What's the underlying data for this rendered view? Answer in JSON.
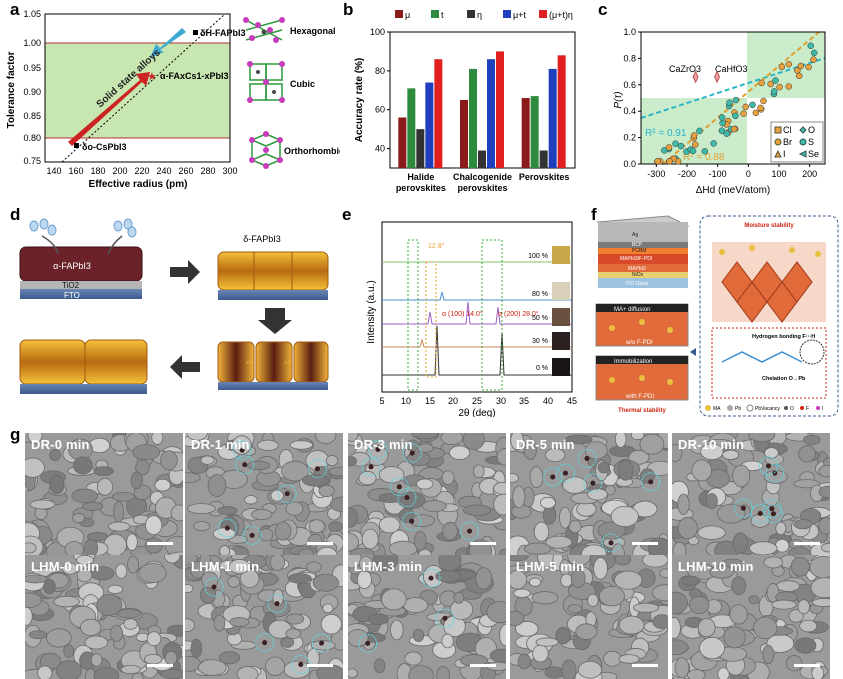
{
  "panels": {
    "a": "a",
    "b": "b",
    "c": "c",
    "d": "d",
    "e": "e",
    "f": "f",
    "g": "g"
  },
  "panel_a": {
    "xlabel": "Effective radius (pm)",
    "ylabel": "Tolerance factor",
    "xticks": [
      "140",
      "160",
      "180",
      "200",
      "220",
      "240",
      "260",
      "280",
      "300"
    ],
    "yticks": [
      "0.75",
      "0.80",
      "0.85",
      "0.90",
      "0.95",
      "1.00",
      "1.05"
    ],
    "arrow_label": "Solid state alloys",
    "label_top": "δH-FAPbI3",
    "label_mid": "α-FAxCs1-xPbI3",
    "label_bottom": "δo-CsPbI3",
    "structures": [
      "Hexagonal",
      "Cubic",
      "Orthorhombic"
    ]
  },
  "chart_data": [
    {
      "type": "bar",
      "panel": "b",
      "ylabel": "Accuracy rate (%)",
      "categories": [
        "Halide perovskites",
        "Chalcogenide perovskites",
        "Perovskites"
      ],
      "category_lines": [
        [
          "Halide",
          "perovskites"
        ],
        [
          "Chalcogenide",
          "perovskites"
        ],
        [
          "Perovskites"
        ]
      ],
      "ylim": [
        30,
        100
      ],
      "yticks": [
        "40",
        "60",
        "80",
        "100"
      ],
      "series": [
        {
          "name": "μ",
          "color": "#8b1a1a",
          "values": [
            56,
            65,
            66
          ]
        },
        {
          "name": "t",
          "color": "#2e8b3e",
          "values": [
            71,
            81,
            67
          ]
        },
        {
          "name": "η",
          "color": "#333333",
          "values": [
            50,
            39,
            39
          ]
        },
        {
          "name": "μ+t",
          "color": "#1f3fbf",
          "values": [
            74,
            86,
            81
          ]
        },
        {
          "name": "(μ+t)η",
          "color": "#e02020",
          "values": [
            86,
            90,
            88
          ]
        }
      ]
    },
    {
      "type": "scatter",
      "panel": "c",
      "xlabel": "ΔHd (meV/atom)",
      "ylabel": "P(τ)",
      "xlim": [
        -350,
        250
      ],
      "ylim": [
        0,
        1
      ],
      "xticks": [
        "-300",
        "-200",
        "-100",
        "0",
        "100",
        "200"
      ],
      "yticks": [
        "0.0",
        "0.2",
        "0.4",
        "0.6",
        "0.8",
        "1.0"
      ],
      "annotations": [
        "CaZrO3",
        "CaHfO3"
      ],
      "fits": [
        {
          "label": "R² = 0.91",
          "color": "#2bb5c8"
        },
        {
          "label": "R² = 0.88",
          "color": "#e0a030"
        }
      ],
      "legend": [
        "Cl",
        "O",
        "Br",
        "S",
        "I",
        "Se"
      ]
    }
  ],
  "panel_d": {
    "layer_alpha": "α-FAPbI3",
    "layer_tio2": "TiO2",
    "layer_fto": "FTO",
    "layer_delta": "δ-FAPbI3"
  },
  "panel_e": {
    "xlabel": "2θ (deg)",
    "ylabel": "Intensity (a.u.)",
    "xticks": [
      "5",
      "10",
      "15",
      "20",
      "25",
      "30",
      "35",
      "40",
      "45"
    ],
    "peak1": "α (100)\n14.0°",
    "peak2": "α (200)\n28.0°",
    "peak3": "12.8°",
    "percents": [
      "100 %",
      "80 %",
      "50 %",
      "30 %",
      "0 %"
    ]
  },
  "panel_f": {
    "layers": [
      "Ag",
      "BCP",
      "PCBM",
      "MAPbI3/F-PDI",
      "MAPbI3",
      "NiOx",
      "ITO Glass"
    ],
    "box1": "MA+ diffusion",
    "box1b": "w/o F-PDI",
    "box2": "Immobilization",
    "box2b": "with F-PDI",
    "thermal": "Thermal stability",
    "moisture": "Moisture stability",
    "hbond": "Hydrogen bonding\nF···H",
    "chelation": "Chelation\nO→Pb",
    "legend": [
      "MA",
      "Pb",
      "PbVacancy",
      "O",
      "F",
      "I"
    ]
  },
  "panel_g": {
    "top": [
      "DR-0 min",
      "DR-1 min",
      "DR-3 min",
      "DR-5 min",
      "DR-10 min"
    ],
    "bottom": [
      "LHM-0 min",
      "LHM-1 min",
      "LHM-3 min",
      "LHM-5 min",
      "LHM-10 min"
    ]
  }
}
